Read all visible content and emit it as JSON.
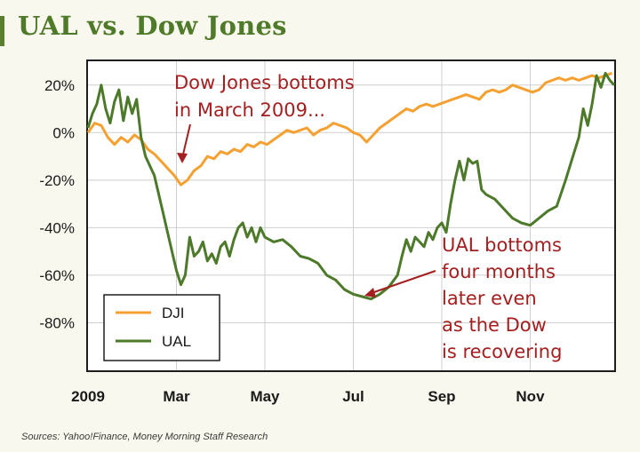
{
  "title": "UAL vs. Dow Jones",
  "source": "Sources: Yahoo!Finance, Money Morning Staff Research",
  "colors": {
    "dji": "#f5a030",
    "ual": "#4d7a2a",
    "annotation": "#a42020",
    "title": "#4f7a2a"
  },
  "chart_data": {
    "type": "line",
    "title": "UAL vs. Dow Jones",
    "xlabel": "",
    "ylabel": "",
    "x_unit": "months since Jan 2009",
    "xlim": [
      0,
      11.9
    ],
    "ylim": [
      -100,
      30
    ],
    "grid": true,
    "x_ticks": [
      {
        "x": 0,
        "label": "2009"
      },
      {
        "x": 2,
        "label": "Mar"
      },
      {
        "x": 4,
        "label": "May"
      },
      {
        "x": 6,
        "label": "Jul"
      },
      {
        "x": 8,
        "label": "Sep"
      },
      {
        "x": 10,
        "label": "Nov"
      }
    ],
    "y_ticks": [
      {
        "y": 20,
        "label": "20%"
      },
      {
        "y": 0,
        "label": "0%"
      },
      {
        "y": -20,
        "label": "-20%"
      },
      {
        "y": -40,
        "label": "-40%"
      },
      {
        "y": -60,
        "label": "-60%"
      },
      {
        "y": -80,
        "label": "-80%"
      }
    ],
    "legend": {
      "position": "bottom-left",
      "entries": [
        "DJI",
        "UAL"
      ]
    },
    "series": [
      {
        "name": "DJI",
        "color": "#f5a030",
        "points": [
          [
            0,
            0
          ],
          [
            0.15,
            4
          ],
          [
            0.3,
            3
          ],
          [
            0.45,
            -2
          ],
          [
            0.6,
            -5
          ],
          [
            0.75,
            -2
          ],
          [
            0.9,
            -4
          ],
          [
            1.05,
            -1
          ],
          [
            1.2,
            -3
          ],
          [
            1.35,
            -7
          ],
          [
            1.5,
            -9
          ],
          [
            1.65,
            -12
          ],
          [
            1.8,
            -15
          ],
          [
            1.95,
            -18
          ],
          [
            2.1,
            -22
          ],
          [
            2.25,
            -20
          ],
          [
            2.4,
            -16
          ],
          [
            2.55,
            -14
          ],
          [
            2.7,
            -10
          ],
          [
            2.85,
            -11
          ],
          [
            3.0,
            -8
          ],
          [
            3.15,
            -9
          ],
          [
            3.3,
            -7
          ],
          [
            3.45,
            -8
          ],
          [
            3.6,
            -5
          ],
          [
            3.75,
            -6
          ],
          [
            3.9,
            -4
          ],
          [
            4.05,
            -5
          ],
          [
            4.2,
            -3
          ],
          [
            4.35,
            -1
          ],
          [
            4.5,
            1
          ],
          [
            4.65,
            0
          ],
          [
            4.8,
            1
          ],
          [
            4.95,
            2
          ],
          [
            5.1,
            -1
          ],
          [
            5.25,
            1
          ],
          [
            5.4,
            2
          ],
          [
            5.55,
            4
          ],
          [
            5.7,
            3
          ],
          [
            5.85,
            2
          ],
          [
            6.0,
            0
          ],
          [
            6.15,
            -1
          ],
          [
            6.3,
            -4
          ],
          [
            6.45,
            -1
          ],
          [
            6.6,
            2
          ],
          [
            6.75,
            4
          ],
          [
            6.9,
            6
          ],
          [
            7.05,
            8
          ],
          [
            7.2,
            10
          ],
          [
            7.35,
            9
          ],
          [
            7.5,
            11
          ],
          [
            7.65,
            12
          ],
          [
            7.8,
            11
          ],
          [
            7.95,
            12
          ],
          [
            8.1,
            13
          ],
          [
            8.25,
            14
          ],
          [
            8.4,
            15
          ],
          [
            8.55,
            16
          ],
          [
            8.7,
            15
          ],
          [
            8.85,
            14
          ],
          [
            9.0,
            17
          ],
          [
            9.15,
            18
          ],
          [
            9.3,
            17
          ],
          [
            9.45,
            18
          ],
          [
            9.6,
            20
          ],
          [
            9.75,
            19
          ],
          [
            9.9,
            18
          ],
          [
            10.05,
            17
          ],
          [
            10.2,
            18
          ],
          [
            10.35,
            21
          ],
          [
            10.5,
            22
          ],
          [
            10.65,
            23
          ],
          [
            10.8,
            22
          ],
          [
            10.95,
            23
          ],
          [
            11.1,
            22
          ],
          [
            11.25,
            23
          ],
          [
            11.4,
            24
          ],
          [
            11.55,
            23
          ],
          [
            11.7,
            24
          ],
          [
            11.85,
            25
          ]
        ]
      },
      {
        "name": "UAL",
        "color": "#4d7a2a",
        "points": [
          [
            0,
            2
          ],
          [
            0.1,
            8
          ],
          [
            0.2,
            12
          ],
          [
            0.3,
            20
          ],
          [
            0.4,
            10
          ],
          [
            0.5,
            4
          ],
          [
            0.6,
            13
          ],
          [
            0.7,
            18
          ],
          [
            0.8,
            5
          ],
          [
            0.9,
            15
          ],
          [
            1.0,
            8
          ],
          [
            1.1,
            14
          ],
          [
            1.2,
            -2
          ],
          [
            1.3,
            -10
          ],
          [
            1.4,
            -14
          ],
          [
            1.5,
            -18
          ],
          [
            1.6,
            -26
          ],
          [
            1.7,
            -34
          ],
          [
            1.8,
            -42
          ],
          [
            1.9,
            -50
          ],
          [
            2.0,
            -58
          ],
          [
            2.1,
            -64
          ],
          [
            2.2,
            -60
          ],
          [
            2.3,
            -44
          ],
          [
            2.4,
            -52
          ],
          [
            2.5,
            -50
          ],
          [
            2.6,
            -46
          ],
          [
            2.7,
            -54
          ],
          [
            2.8,
            -51
          ],
          [
            2.9,
            -55
          ],
          [
            3.0,
            -48
          ],
          [
            3.1,
            -46
          ],
          [
            3.2,
            -52
          ],
          [
            3.3,
            -45
          ],
          [
            3.4,
            -40
          ],
          [
            3.5,
            -38
          ],
          [
            3.6,
            -44
          ],
          [
            3.7,
            -40
          ],
          [
            3.8,
            -46
          ],
          [
            3.9,
            -40
          ],
          [
            4.0,
            -44
          ],
          [
            4.2,
            -46
          ],
          [
            4.4,
            -45
          ],
          [
            4.6,
            -48
          ],
          [
            4.8,
            -52
          ],
          [
            5.0,
            -53
          ],
          [
            5.2,
            -55
          ],
          [
            5.4,
            -60
          ],
          [
            5.6,
            -62
          ],
          [
            5.8,
            -66
          ],
          [
            6.0,
            -68
          ],
          [
            6.2,
            -69
          ],
          [
            6.4,
            -70
          ],
          [
            6.6,
            -68
          ],
          [
            6.8,
            -65
          ],
          [
            7.0,
            -60
          ],
          [
            7.1,
            -52
          ],
          [
            7.2,
            -45
          ],
          [
            7.3,
            -50
          ],
          [
            7.4,
            -44
          ],
          [
            7.5,
            -46
          ],
          [
            7.6,
            -48
          ],
          [
            7.7,
            -42
          ],
          [
            7.8,
            -45
          ],
          [
            7.9,
            -40
          ],
          [
            8.0,
            -38
          ],
          [
            8.1,
            -42
          ],
          [
            8.2,
            -30
          ],
          [
            8.3,
            -20
          ],
          [
            8.4,
            -12
          ],
          [
            8.5,
            -20
          ],
          [
            8.6,
            -11
          ],
          [
            8.7,
            -13
          ],
          [
            8.8,
            -12
          ],
          [
            8.9,
            -24
          ],
          [
            9.0,
            -26
          ],
          [
            9.2,
            -28
          ],
          [
            9.4,
            -32
          ],
          [
            9.6,
            -36
          ],
          [
            9.8,
            -38
          ],
          [
            10.0,
            -39
          ],
          [
            10.2,
            -36
          ],
          [
            10.4,
            -33
          ],
          [
            10.6,
            -31
          ],
          [
            10.8,
            -20
          ],
          [
            11.0,
            -8
          ],
          [
            11.1,
            -2
          ],
          [
            11.2,
            10
          ],
          [
            11.3,
            3
          ],
          [
            11.4,
            12
          ],
          [
            11.5,
            24
          ],
          [
            11.6,
            19
          ],
          [
            11.7,
            25
          ],
          [
            11.8,
            22
          ],
          [
            11.9,
            20
          ]
        ]
      }
    ],
    "annotations": [
      {
        "lines": [
          "Dow Jones bottoms",
          "in March 2009..."
        ]
      },
      {
        "lines": [
          "UAL bottoms",
          "four months",
          "later even",
          "as the Dow",
          "is recovering"
        ]
      }
    ]
  }
}
